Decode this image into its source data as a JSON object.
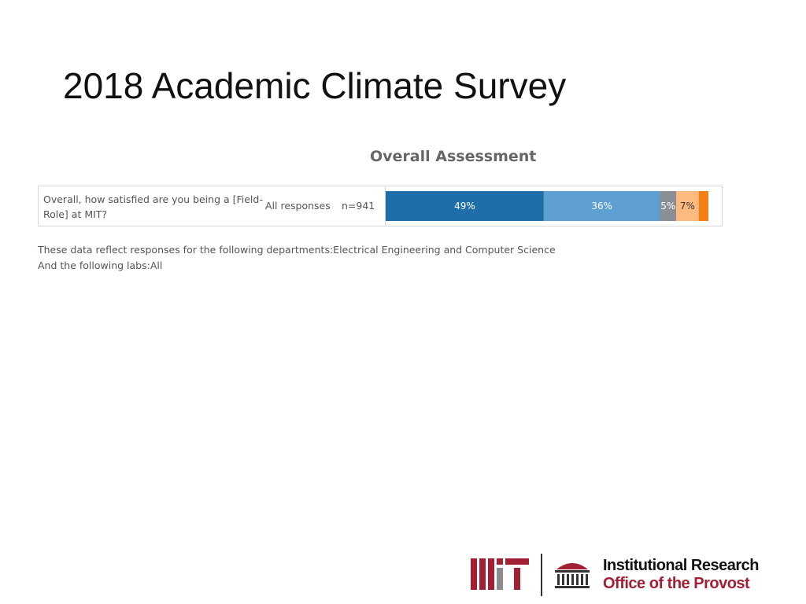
{
  "slide": {
    "title": "2018 Academic Climate Survey"
  },
  "chart_data": {
    "type": "bar",
    "orientation": "horizontal-stacked",
    "title": "Overall Assessment",
    "categories": [
      "Overall, how satisfied are you being a [Field-Role] at MIT?"
    ],
    "row_label": "All responses",
    "n_label": "n=941",
    "series": [
      {
        "values": [
          49
        ],
        "color": "#1f6eaa",
        "label": "49%"
      },
      {
        "values": [
          36
        ],
        "color": "#5d9fd0",
        "label": "36%"
      },
      {
        "values": [
          5
        ],
        "color": "#8a8f96",
        "label": "5%"
      },
      {
        "values": [
          7
        ],
        "color": "#fdb97e",
        "label": "7%"
      },
      {
        "values": [
          3
        ],
        "color": "#f57f17",
        "label": ""
      }
    ],
    "xlim": [
      0,
      100
    ],
    "grid": false,
    "legend": "none"
  },
  "footnotes": {
    "line1": "These data reflect responses for the following departments:Electrical Engineering and Computer Science",
    "line2": "And the following labs:All"
  },
  "branding": {
    "ir_line1": "Institutional Research",
    "ir_line2": "Office of the Provost",
    "mit_wordmark": "MIT",
    "mit_color": "#a31f34",
    "mit_gray": "#8a8b8c"
  }
}
